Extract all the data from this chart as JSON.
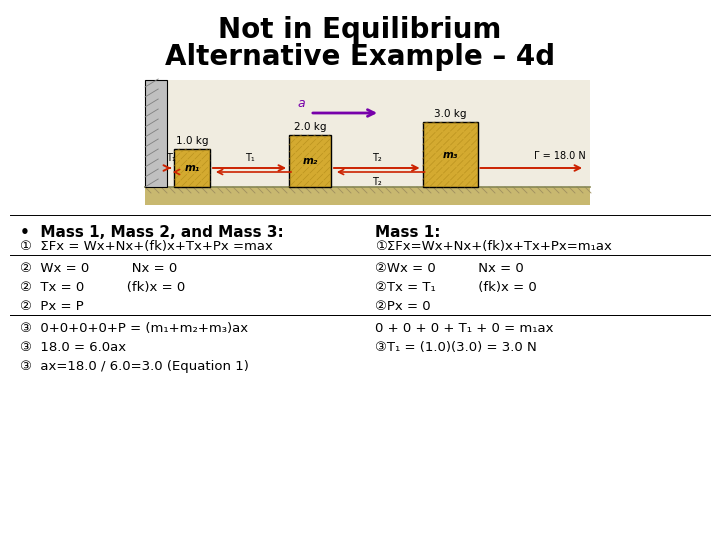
{
  "title_line1": "Not in Equilibrium",
  "title_line2": "Alternative Example – 4d",
  "title_fontsize": 20,
  "background_color": "#ffffff",
  "left_header": "Mass 1, Mass 2, and Mass 3:",
  "right_header": "Mass 1:",
  "header_fontsize": 11,
  "text_fontsize": 9.5,
  "bullet": "•",
  "diagram_bg": "#e8e0c8",
  "wall_color": "#b0b0b0",
  "mass_color": "#d4aa30",
  "mass_hatch_color": "#c09020",
  "ground_color": "#c8b890",
  "rope_color": "#cc2200",
  "accel_color": "#7700aa",
  "left_lines": [
    "①  ΣFx = Wx+Nx+(fk)x+Tx+Px =max",
    "②  Wx = 0          Nx = 0",
    "②  Tx = 0          (fk)x = 0",
    "②  Px = P",
    "③  0+0+0+0+P = (m₁+m₂+m₃)ax",
    "③  18.0 = 6.0ax",
    "③  ax=18.0 / 6.0=3.0 (Equation 1)"
  ],
  "right_lines": [
    "①ΣFx=Wx+Nx+(fk)x+Tx+Px=m₁ax",
    "②Wx = 0          Nx = 0",
    "②Tx = T₁          (fk)x = 0",
    "②Px = 0",
    "⁢0 + 0 + 0 + T₁ + 0 = m₁ax",
    "③T₁ = (1.0)(3.0) = 3.0 N"
  ]
}
